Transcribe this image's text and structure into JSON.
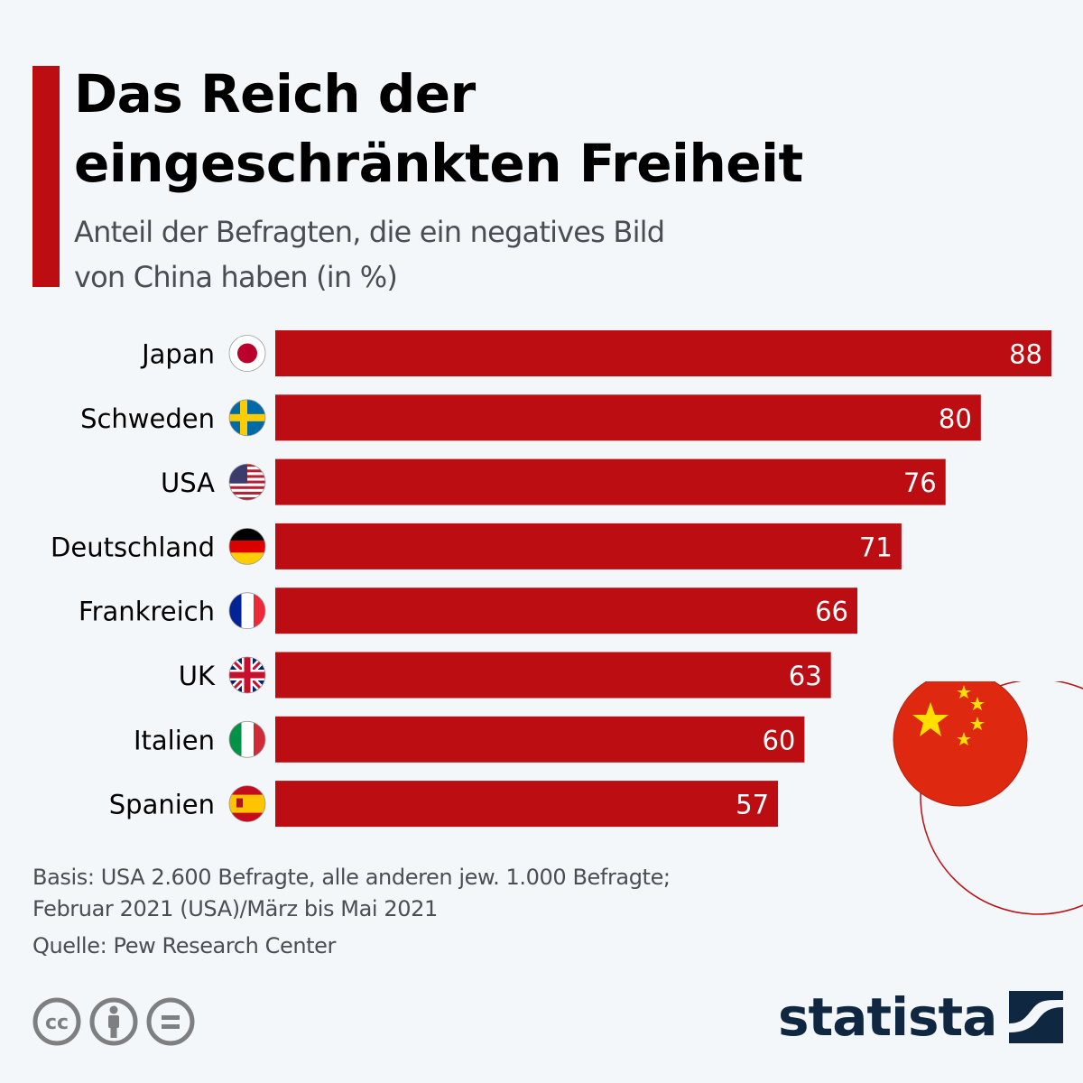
{
  "header": {
    "title_line1": "Das Reich der",
    "title_line2": "eingeschränkten Freiheit",
    "subtitle_line1": "Anteil der Befragten, die ein negatives Bild",
    "subtitle_line2": "von China haben (in %)"
  },
  "chart_data": {
    "type": "bar",
    "orientation": "horizontal",
    "title": "Das Reich der eingeschränkten Freiheit",
    "subtitle": "Anteil der Befragten, die ein negatives Bild von China haben (in %)",
    "categories": [
      "Japan",
      "Schweden",
      "USA",
      "Deutschland",
      "Frankreich",
      "UK",
      "Italien",
      "Spanien"
    ],
    "values": [
      88,
      80,
      76,
      71,
      66,
      63,
      60,
      57
    ],
    "flags": [
      "japan-flag-icon",
      "sweden-flag-icon",
      "usa-flag-icon",
      "germany-flag-icon",
      "france-flag-icon",
      "uk-flag-icon",
      "italy-flag-icon",
      "spain-flag-icon"
    ],
    "xlabel": "",
    "ylabel": "",
    "xlim": [
      0,
      88
    ],
    "grid": false,
    "data_labels": true,
    "bar_color": "#bc0d12"
  },
  "footer": {
    "basis_line1": "Basis: USA 2.600 Befragte, alle anderen jew. 1.000 Befragte;",
    "basis_line2": "Februar 2021 (USA)/März bis Mai 2021",
    "source": "Quelle: Pew Research Center",
    "license_icons": [
      "cc-icon",
      "attribution-icon",
      "no-derivatives-icon"
    ],
    "brand": "statista"
  },
  "colors": {
    "accent": "#bc0d12",
    "background": "#f4f7fa",
    "brand": "#0f2741",
    "china_red": "#de2910",
    "china_yellow": "#ffde00"
  }
}
